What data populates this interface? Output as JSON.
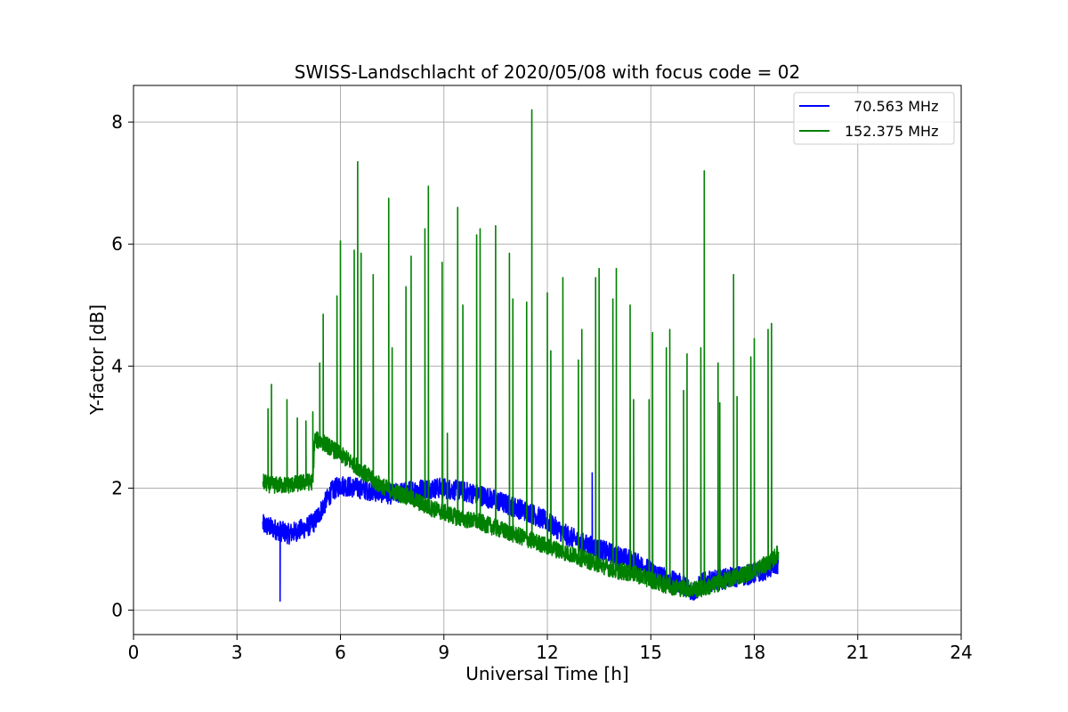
{
  "chart_data": {
    "type": "line",
    "title": "SWISS-Landschlacht of 2020/05/08 with focus code = 02",
    "xlabel": "Universal Time [h]",
    "ylabel": "Y-factor [dB]",
    "xlim": [
      0,
      24
    ],
    "ylim": [
      -0.4,
      8.6
    ],
    "xticks": [
      0,
      3,
      6,
      9,
      12,
      15,
      18,
      21,
      24
    ],
    "xtick_labels": [
      "0",
      "3",
      "6",
      "9",
      "12",
      "15",
      "18",
      "21",
      "24"
    ],
    "yticks": [
      0,
      2,
      4,
      6,
      8
    ],
    "ytick_labels": [
      "0",
      "2",
      "4",
      "6",
      "8"
    ],
    "grid": true,
    "legend_position": "top-right",
    "series": [
      {
        "name": "  70.563 MHz",
        "color": "#0000ff",
        "x": [
          3.75,
          4.0,
          4.25,
          4.5,
          4.75,
          5.0,
          5.25,
          5.5,
          5.75,
          6.0,
          6.5,
          7.0,
          7.5,
          8.0,
          8.5,
          9.0,
          9.5,
          10.0,
          10.5,
          11.0,
          11.5,
          12.0,
          12.5,
          13.0,
          13.5,
          14.0,
          14.5,
          15.0,
          15.5,
          16.0,
          16.25,
          16.5,
          17.0,
          17.5,
          18.0,
          18.5,
          18.7
        ],
        "y": [
          1.4,
          1.35,
          1.3,
          1.25,
          1.3,
          1.35,
          1.45,
          1.7,
          1.95,
          2.05,
          2.0,
          1.95,
          1.9,
          1.95,
          2.0,
          2.0,
          1.95,
          1.9,
          1.8,
          1.7,
          1.6,
          1.45,
          1.25,
          1.1,
          1.0,
          0.9,
          0.8,
          0.65,
          0.5,
          0.4,
          0.3,
          0.45,
          0.5,
          0.55,
          0.6,
          0.7,
          0.75
        ],
        "spikes": [
          {
            "x": 4.25,
            "y": 0.15
          },
          {
            "x": 13.3,
            "y": 2.25
          }
        ]
      },
      {
        "name": "152.375 MHz",
        "color": "#008000",
        "x": [
          3.75,
          4.0,
          4.5,
          5.0,
          5.2,
          5.25,
          5.5,
          6.0,
          6.5,
          7.0,
          7.5,
          8.0,
          8.5,
          9.0,
          9.5,
          10.0,
          10.5,
          11.0,
          11.5,
          12.0,
          12.5,
          13.0,
          13.5,
          14.0,
          14.5,
          15.0,
          15.5,
          16.0,
          16.5,
          17.0,
          17.5,
          18.0,
          18.5,
          18.7
        ],
        "y": [
          2.1,
          2.05,
          2.05,
          2.1,
          2.1,
          2.8,
          2.75,
          2.55,
          2.35,
          2.1,
          1.95,
          1.85,
          1.7,
          1.6,
          1.5,
          1.45,
          1.35,
          1.25,
          1.15,
          1.05,
          0.95,
          0.85,
          0.75,
          0.65,
          0.6,
          0.5,
          0.4,
          0.35,
          0.35,
          0.45,
          0.55,
          0.65,
          0.8,
          0.95
        ],
        "spikes": [
          {
            "x": 3.9,
            "y": 3.3
          },
          {
            "x": 4.0,
            "y": 3.7
          },
          {
            "x": 4.45,
            "y": 3.45
          },
          {
            "x": 4.75,
            "y": 3.15
          },
          {
            "x": 5.0,
            "y": 3.1
          },
          {
            "x": 5.2,
            "y": 3.25
          },
          {
            "x": 5.4,
            "y": 4.05
          },
          {
            "x": 5.5,
            "y": 4.85
          },
          {
            "x": 5.9,
            "y": 5.15
          },
          {
            "x": 6.0,
            "y": 6.05
          },
          {
            "x": 6.4,
            "y": 5.9
          },
          {
            "x": 6.5,
            "y": 7.35
          },
          {
            "x": 6.6,
            "y": 5.85
          },
          {
            "x": 6.95,
            "y": 5.5
          },
          {
            "x": 7.4,
            "y": 6.75
          },
          {
            "x": 7.5,
            "y": 4.3
          },
          {
            "x": 7.9,
            "y": 5.3
          },
          {
            "x": 8.05,
            "y": 5.8
          },
          {
            "x": 8.45,
            "y": 6.25
          },
          {
            "x": 8.55,
            "y": 6.95
          },
          {
            "x": 8.95,
            "y": 5.7
          },
          {
            "x": 9.1,
            "y": 2.9
          },
          {
            "x": 9.4,
            "y": 6.6
          },
          {
            "x": 9.55,
            "y": 5.0
          },
          {
            "x": 9.95,
            "y": 6.15
          },
          {
            "x": 10.05,
            "y": 6.25
          },
          {
            "x": 10.5,
            "y": 6.3
          },
          {
            "x": 10.9,
            "y": 5.85
          },
          {
            "x": 11.0,
            "y": 5.1
          },
          {
            "x": 11.4,
            "y": 5.05
          },
          {
            "x": 11.55,
            "y": 8.2
          },
          {
            "x": 12.0,
            "y": 5.2
          },
          {
            "x": 12.1,
            "y": 4.25
          },
          {
            "x": 12.45,
            "y": 5.45
          },
          {
            "x": 12.9,
            "y": 4.1
          },
          {
            "x": 13.0,
            "y": 4.6
          },
          {
            "x": 13.4,
            "y": 5.45
          },
          {
            "x": 13.5,
            "y": 5.6
          },
          {
            "x": 13.9,
            "y": 5.1
          },
          {
            "x": 14.0,
            "y": 5.6
          },
          {
            "x": 14.4,
            "y": 5.0
          },
          {
            "x": 14.5,
            "y": 3.45
          },
          {
            "x": 14.95,
            "y": 3.45
          },
          {
            "x": 15.05,
            "y": 4.55
          },
          {
            "x": 15.45,
            "y": 4.3
          },
          {
            "x": 15.55,
            "y": 4.6
          },
          {
            "x": 15.95,
            "y": 3.6
          },
          {
            "x": 16.05,
            "y": 4.2
          },
          {
            "x": 16.45,
            "y": 4.3
          },
          {
            "x": 16.55,
            "y": 7.2
          },
          {
            "x": 16.95,
            "y": 4.05
          },
          {
            "x": 17.0,
            "y": 3.4
          },
          {
            "x": 17.4,
            "y": 5.5
          },
          {
            "x": 17.5,
            "y": 3.5
          },
          {
            "x": 17.9,
            "y": 4.15
          },
          {
            "x": 18.0,
            "y": 4.45
          },
          {
            "x": 18.4,
            "y": 4.6
          },
          {
            "x": 18.5,
            "y": 4.7
          }
        ]
      }
    ]
  }
}
